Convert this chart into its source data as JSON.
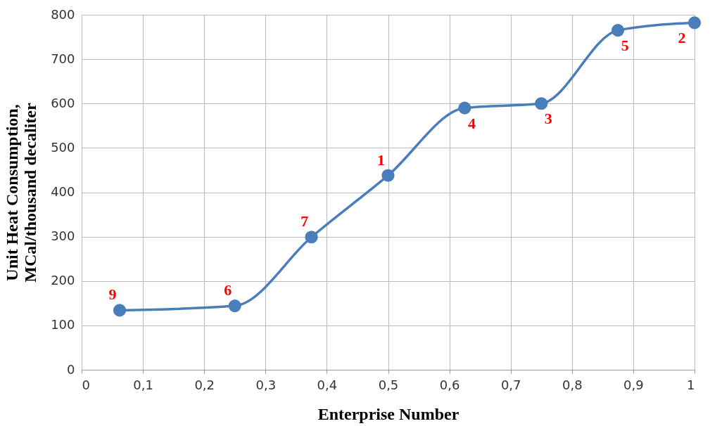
{
  "chart_data": {
    "type": "line",
    "xlabel": "Enterprise Number",
    "ylabel": "Unit Heat Consumption,\nMCal/thousand decaliter",
    "x": [
      0.062,
      0.25,
      0.375,
      0.5,
      0.625,
      0.75,
      0.875,
      1.0
    ],
    "series": [
      {
        "color": "#4a7ebb",
        "values": [
          134,
          144,
          299,
          438,
          590,
          600,
          765,
          782
        ]
      }
    ],
    "xlim": [
      0,
      1
    ],
    "ylim": [
      0,
      800
    ],
    "xticks": [
      0,
      {
        "value": 0.1,
        "label": "0,1"
      },
      {
        "value": 0.2,
        "label": "0,2"
      },
      {
        "value": 0.3,
        "label": "0,3"
      },
      {
        "value": 0.4,
        "label": "0,4"
      },
      {
        "value": 0.5,
        "label": "0,5"
      },
      {
        "value": 0.6,
        "label": "0,6"
      },
      {
        "value": 0.7,
        "label": "0,7"
      },
      {
        "value": 0.8,
        "label": "0,8"
      },
      {
        "value": 0.9,
        "label": "0,9"
      },
      1
    ],
    "yticks": [
      0,
      100,
      200,
      300,
      400,
      500,
      600,
      700,
      800
    ],
    "grid": true,
    "marker": "circle",
    "line_style": "solid",
    "annotations": [
      {
        "text": "9",
        "x": 0.062,
        "y": 134
      },
      {
        "text": "6",
        "x": 0.25,
        "y": 144
      },
      {
        "text": "7",
        "x": 0.375,
        "y": 299
      },
      {
        "text": "1",
        "x": 0.5,
        "y": 438
      },
      {
        "text": "4",
        "x": 0.625,
        "y": 590
      },
      {
        "text": "3",
        "x": 0.75,
        "y": 600
      },
      {
        "text": "5",
        "x": 0.875,
        "y": 765
      },
      {
        "text": "2",
        "x": 1.0,
        "y": 782
      }
    ]
  }
}
